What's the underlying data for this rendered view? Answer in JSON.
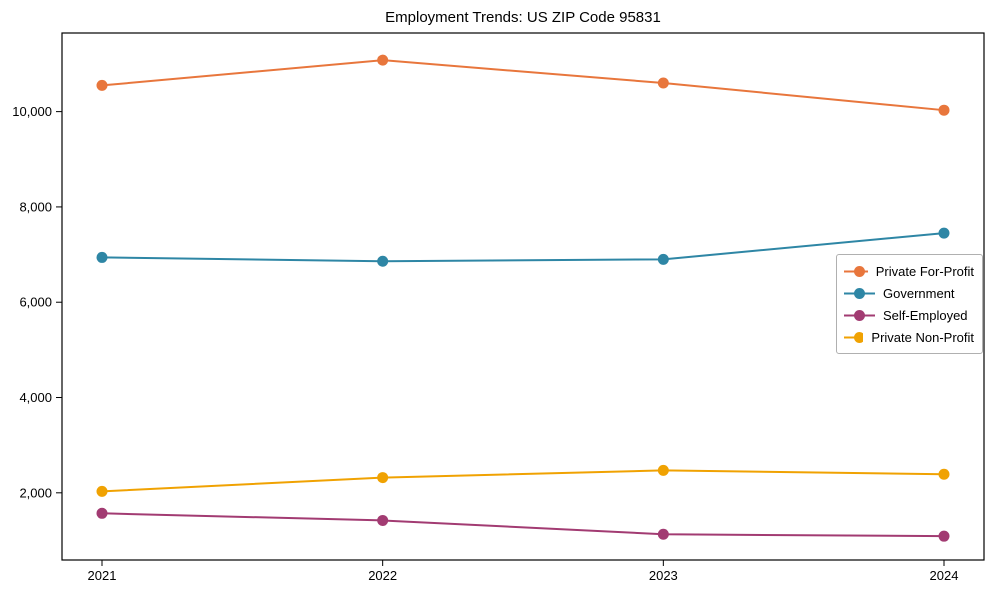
{
  "title": "Employment Trends: US ZIP Code 95831",
  "chart_data": {
    "type": "line",
    "title": "Employment Trends: US ZIP Code 95831",
    "xlabel": "",
    "ylabel": "",
    "x": [
      2021,
      2022,
      2023,
      2024
    ],
    "series": [
      {
        "name": "Private For-Profit",
        "color": "#E8763C",
        "values": [
          10550,
          11080,
          10600,
          10030
        ]
      },
      {
        "name": "Government",
        "color": "#2E86A5",
        "values": [
          6940,
          6860,
          6900,
          7450
        ]
      },
      {
        "name": "Self-Employed",
        "color": "#A23B72",
        "values": [
          1570,
          1420,
          1130,
          1090
        ]
      },
      {
        "name": "Private Non-Profit",
        "color": "#F0A202",
        "values": [
          2030,
          2320,
          2470,
          2390
        ]
      }
    ],
    "ylim": [
      590,
      11650
    ],
    "yticks": [
      2000,
      4000,
      6000,
      8000,
      10000
    ],
    "grid": false,
    "legend_position": "center right",
    "marker": "circle",
    "axis_color": "#000000"
  }
}
